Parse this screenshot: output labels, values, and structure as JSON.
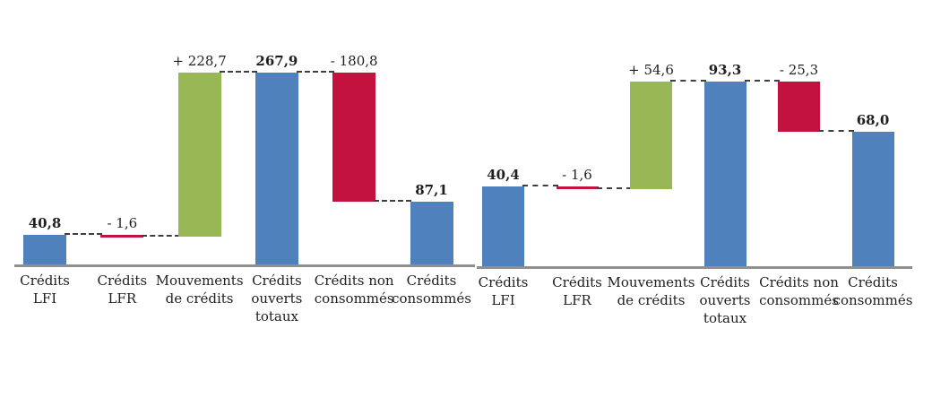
{
  "page": {
    "background": "#ffffff",
    "description_labels": {
      "left_chart_name": "waterfall-chart-left",
      "right_chart_name": "waterfall-chart-right"
    }
  },
  "colors": {
    "total_bar": "#4f81bd",
    "increase_bar": "#98b855",
    "decrease_bar": "#c4123f",
    "axis_line": "#8f8f8f",
    "connector": "#3f3f3f",
    "text": "#1f1f1f"
  },
  "chart_data": [
    {
      "type": "bar",
      "subtype": "waterfall",
      "grid": false,
      "legend": false,
      "ylim": [
        0,
        268
      ],
      "categories": [
        "Crédits\nLFI",
        "Crédits\nLFR",
        "Mouvements\nde crédits",
        "Crédits\nouverts\ntotaux",
        "Crédits non\nconsommés",
        "Crédits\nconsommés"
      ],
      "steps": [
        {
          "label": "40,8",
          "value": 40.8,
          "kind": "total",
          "bold": true
        },
        {
          "label": "- 1,6",
          "value": -1.6,
          "kind": "delta",
          "bold": false
        },
        {
          "label": "+ 228,7",
          "value": 228.7,
          "kind": "delta",
          "bold": false
        },
        {
          "label": "267,9",
          "value": 267.9,
          "kind": "total",
          "bold": true
        },
        {
          "label": "- 180,8",
          "value": -180.8,
          "kind": "delta",
          "bold": false
        },
        {
          "label": "87,1",
          "value": 87.1,
          "kind": "total",
          "bold": true
        }
      ]
    },
    {
      "type": "bar",
      "subtype": "waterfall",
      "grid": false,
      "legend": false,
      "ylim": [
        0,
        94
      ],
      "categories": [
        "Crédits\nLFI",
        "Crédits\nLFR",
        "Mouvements\nde crédits",
        "Crédits\nouverts\ntotaux",
        "Crédits non\nconsommés",
        "Crédits\nconsommés"
      ],
      "steps": [
        {
          "label": "40,4",
          "value": 40.4,
          "kind": "total",
          "bold": true
        },
        {
          "label": "- 1,6",
          "value": -1.6,
          "kind": "delta",
          "bold": false
        },
        {
          "label": "+ 54,6",
          "value": 54.6,
          "kind": "delta",
          "bold": false
        },
        {
          "label": "93,3",
          "value": 93.3,
          "kind": "total",
          "bold": true
        },
        {
          "label": "- 25,3",
          "value": -25.3,
          "kind": "delta",
          "bold": false
        },
        {
          "label": "68,0",
          "value": 68.0,
          "kind": "total",
          "bold": true
        }
      ]
    }
  ]
}
